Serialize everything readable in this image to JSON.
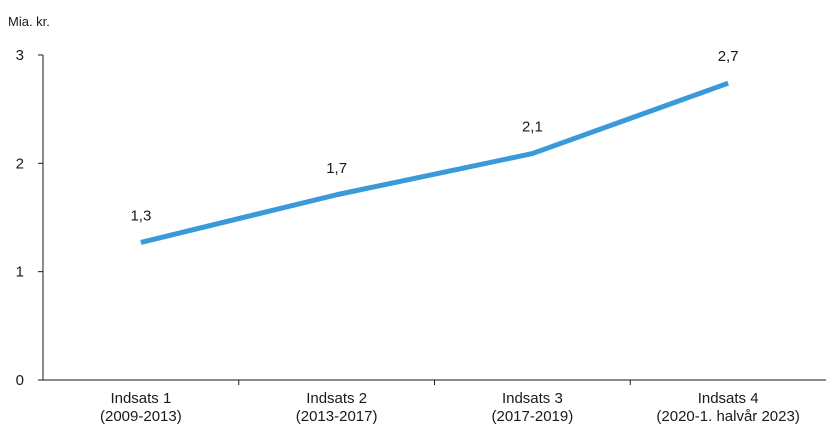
{
  "chart_data": {
    "type": "line",
    "unit_label": "Mia. kr.",
    "categories": [
      [
        "Indsats 1",
        "(2009-2013)"
      ],
      [
        "Indsats 2",
        "(2013-2017)"
      ],
      [
        "Indsats 3",
        "(2017-2019)"
      ],
      [
        "Indsats 4",
        "(2020-1. halvår 2023)"
      ]
    ],
    "series": [
      {
        "values": [
          1.27,
          1.71,
          2.09,
          2.74
        ]
      }
    ],
    "data_labels": [
      "1,3",
      "1,7",
      "2,1",
      "2,7"
    ],
    "yticks": [
      0,
      1,
      2,
      3
    ],
    "ytick_labels": [
      "0",
      "1",
      "2",
      "3"
    ],
    "ylim": [
      0,
      3
    ],
    "grid": false,
    "colors": {
      "line": "#3a9ad9",
      "axis": "#1a1a1a"
    }
  }
}
